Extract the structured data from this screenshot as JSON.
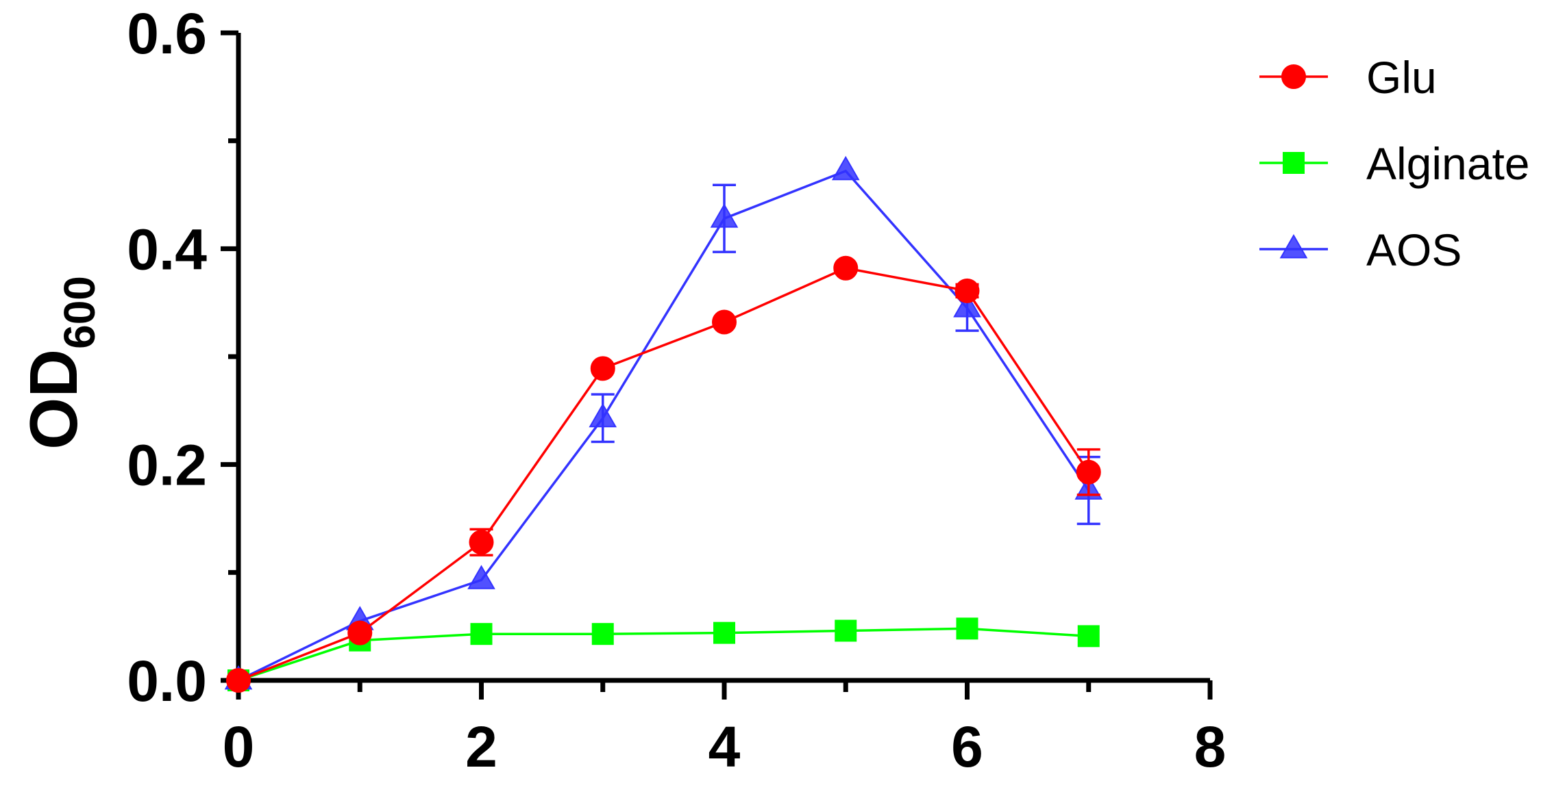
{
  "chart_data": {
    "type": "line",
    "title": "",
    "xlabel": "",
    "ylabel": "OD",
    "ylabel_subscript": "600",
    "xlim": [
      0,
      8
    ],
    "ylim": [
      0,
      0.6
    ],
    "x_ticks": [
      0,
      2,
      4,
      6,
      8
    ],
    "x_tick_labels": [
      "0",
      "2",
      "4",
      "6",
      "8"
    ],
    "x_minor_ticks": [
      1,
      3,
      5,
      7
    ],
    "y_ticks": [
      0.0,
      0.2,
      0.4,
      0.6
    ],
    "y_tick_labels": [
      "0.0",
      "0.2",
      "0.4",
      "0.6"
    ],
    "y_minor_ticks": [
      0.1,
      0.3,
      0.5
    ],
    "grid": false,
    "legend_position": "top-right",
    "x": [
      0,
      1,
      2,
      3,
      4,
      5,
      6,
      7
    ],
    "series": [
      {
        "name": "Glu",
        "color": "#ff0000",
        "marker": "circle",
        "values": [
          0.0,
          0.044,
          0.128,
          0.289,
          0.332,
          0.382,
          0.361,
          0.193
        ],
        "errors": [
          0.0,
          0.0,
          0.012,
          0.0,
          0.0,
          0.0,
          0.006,
          0.021
        ]
      },
      {
        "name": "Alginate",
        "color": "#00ff00",
        "marker": "square",
        "values": [
          0.0,
          0.037,
          0.043,
          0.043,
          0.044,
          0.046,
          0.048,
          0.041
        ],
        "errors": [
          0.0,
          0.0,
          0.0,
          0.0,
          0.0,
          0.0,
          0.0,
          0.0
        ]
      },
      {
        "name": "AOS",
        "color": "#3333ff",
        "marker": "triangle",
        "values": [
          0.0,
          0.055,
          0.093,
          0.243,
          0.428,
          0.472,
          0.345,
          0.176
        ],
        "errors": [
          0.0,
          0.0,
          0.0,
          0.022,
          0.031,
          0.0,
          0.021,
          0.031
        ]
      }
    ]
  }
}
